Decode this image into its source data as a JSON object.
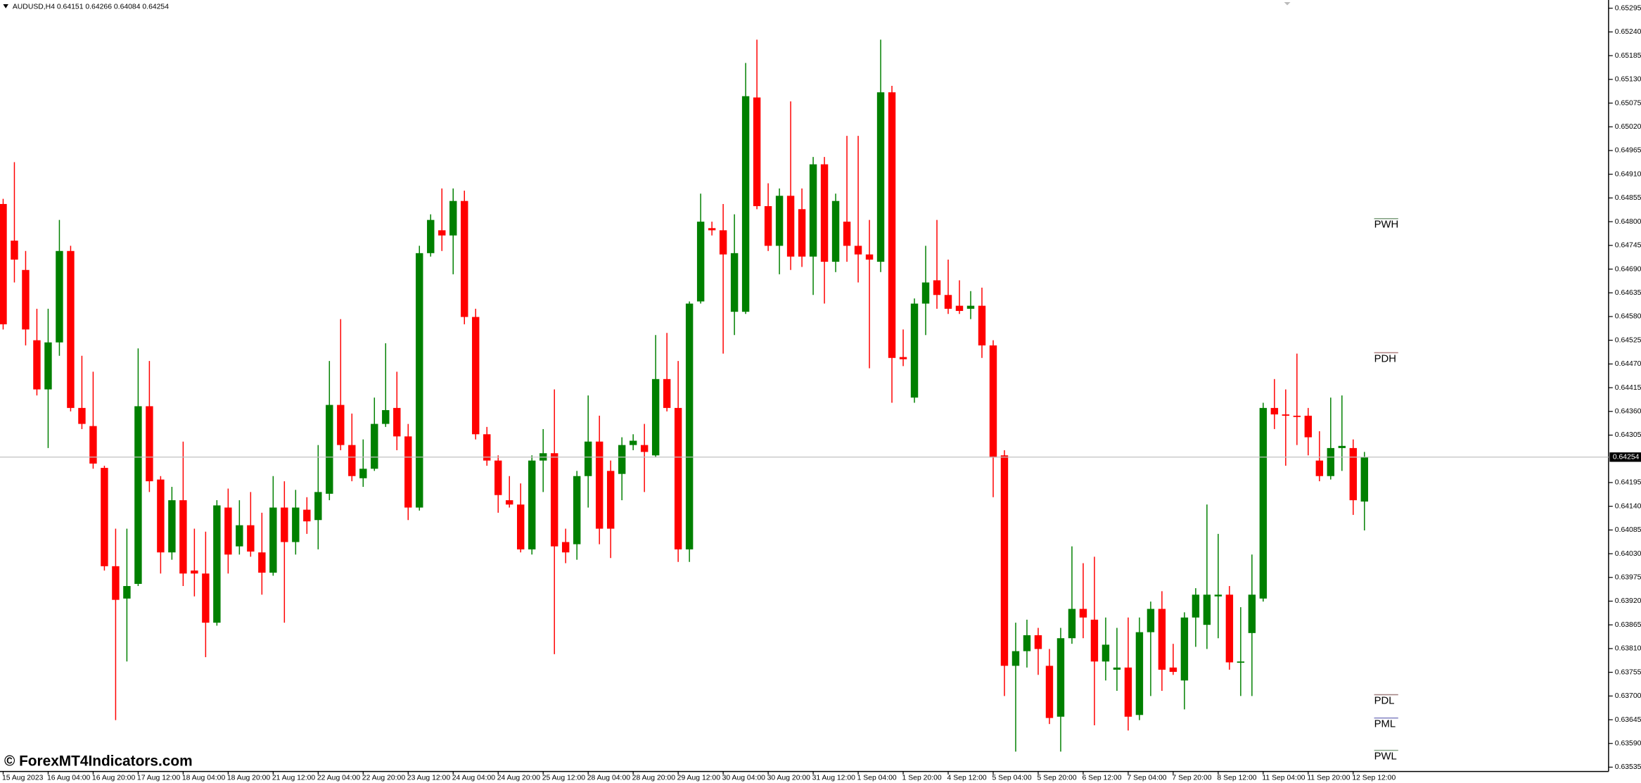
{
  "chart_data": {
    "type": "candlestick",
    "title": "AUDUSD,H4  0.64151 0.64266 0.64084 0.64254",
    "watermark": "© ForexMT4Indicators.com",
    "up_color": "#008000",
    "down_color": "#ff0000",
    "grid": false,
    "ylim": [
      0.63525,
      0.65314
    ],
    "yticks": [
      0.65295,
      {
        "value": 0.6524,
        "label": "0.65240"
      },
      0.65185,
      {
        "value": 0.6513,
        "label": "0.65130"
      },
      0.65075,
      {
        "value": 0.6502,
        "label": "0.65020"
      },
      0.64965,
      {
        "value": 0.6491,
        "label": "0.64910"
      },
      0.64855,
      {
        "value": 0.648,
        "label": "0.64800"
      },
      0.64745,
      {
        "value": 0.6469,
        "label": "0.64690"
      },
      0.64635,
      {
        "value": 0.6458,
        "label": "0.64580"
      },
      0.64525,
      {
        "value": 0.6447,
        "label": "0.64470"
      },
      0.64415,
      {
        "value": 0.6436,
        "label": "0.64360"
      },
      0.64305,
      0.64195,
      {
        "value": 0.6414,
        "label": "0.64140"
      },
      0.64085,
      {
        "value": 0.6403,
        "label": "0.64030"
      },
      0.63975,
      {
        "value": 0.6392,
        "label": "0.63920"
      },
      0.63865,
      {
        "value": 0.6381,
        "label": "0.63810"
      },
      0.63755,
      {
        "value": 0.637,
        "label": "0.63700"
      },
      0.63645,
      {
        "value": 0.6359,
        "label": "0.63590"
      },
      0.63535
    ],
    "last_price": 0.64254,
    "levels": [
      {
        "label": "PWH",
        "value": 0.64807,
        "color": "#7f9f7f"
      },
      {
        "label": "PDH",
        "value": 0.64496,
        "color": "#b08080"
      },
      {
        "label": "PDL",
        "value": 0.63703,
        "color": "#a08080"
      },
      {
        "label": "PML",
        "value": 0.63649,
        "color": "#8080c0"
      },
      {
        "label": "PWL",
        "value": 0.63574,
        "color": "#7f9f7f"
      }
    ],
    "categories": [
      "15 Aug 2023",
      null,
      null,
      null,
      "16 Aug 04:00",
      null,
      null,
      null,
      "16 Aug 20:00",
      null,
      null,
      null,
      "17 Aug 12:00",
      null,
      null,
      null,
      "18 Aug 04:00",
      null,
      null,
      null,
      "18 Aug 20:00",
      null,
      null,
      null,
      "21 Aug 12:00",
      null,
      null,
      null,
      "22 Aug 04:00",
      null,
      null,
      null,
      "22 Aug 20:00",
      null,
      null,
      null,
      "23 Aug 12:00",
      null,
      null,
      null,
      "24 Aug 04:00",
      null,
      null,
      null,
      "24 Aug 20:00",
      null,
      null,
      null,
      "25 Aug 12:00",
      null,
      null,
      null,
      "28 Aug 04:00",
      null,
      null,
      null,
      "28 Aug 20:00",
      null,
      null,
      null,
      "29 Aug 12:00",
      null,
      null,
      null,
      "30 Aug 04:00",
      null,
      null,
      null,
      "30 Aug 20:00",
      null,
      null,
      null,
      "31 Aug 12:00",
      null,
      null,
      null,
      "1 Sep 04:00",
      null,
      null,
      null,
      "1 Sep 20:00",
      null,
      null,
      null,
      "4 Sep 12:00",
      null,
      null,
      null,
      "5 Sep 04:00",
      null,
      null,
      null,
      "5 Sep 20:00",
      null,
      null,
      null,
      "6 Sep 12:00",
      null,
      null,
      null,
      "7 Sep 04:00",
      null,
      null,
      null,
      "7 Sep 20:00",
      null,
      null,
      null,
      "8 Sep 12:00",
      null,
      null,
      null,
      "11 Sep 04:00",
      null,
      null,
      null,
      "11 Sep 20:00",
      null,
      null,
      null,
      "12 Sep 12:00",
      null
    ],
    "open": [
      0.64841,
      0.64756,
      0.64688,
      0.64525,
      0.64411,
      0.6452,
      0.64732,
      0.64368,
      0.64326,
      0.64229,
      0.64001,
      0.63926,
      0.6396,
      0.64372,
      0.64202,
      0.64033,
      0.64154,
      0.63991,
      0.63984,
      0.6387,
      0.64137,
      0.64047,
      0.64096,
      0.64033,
      0.63986,
      0.64137,
      0.64057,
      0.64132,
      0.64108,
      0.64169,
      0.64375,
      0.64282,
      0.64205,
      0.64227,
      0.64331,
      0.64368,
      0.64302,
      0.64137,
      0.64727,
      0.6478,
      0.64768,
      0.64848,
      0.64579,
      0.64307,
      0.64246,
      0.64154,
      0.64144,
      0.6404,
      0.64246,
      0.64263,
      0.64057,
      0.64052,
      0.6421,
      0.6429,
      0.64222,
      0.64215,
      0.64282,
      0.64282,
      0.64258,
      0.64435,
      0.64368,
      0.6404,
      0.64615,
      0.64785,
      0.6478,
      0.64591,
      0.64591,
      0.65088,
      0.64836,
      0.64744,
      0.6486,
      0.64829,
      0.64719,
      0.64933,
      0.64707,
      0.648,
      0.64744,
      0.64724,
      0.64707,
      0.651,
      0.64486,
      0.64392,
      0.6461,
      0.64664,
      0.6463,
      0.64605,
      0.64598,
      0.64605,
      0.64513,
      0.64258,
      0.6377,
      0.63804,
      0.63841,
      0.6377,
      0.63652,
      0.63834,
      0.63902,
      0.63877,
      0.6378,
      0.63761,
      0.63766,
      0.63656,
      0.63848,
      0.63902,
      0.63766,
      0.63736,
      0.63882,
      0.63865,
      0.63931,
      0.63935,
      0.63778,
      0.63846,
      0.63926,
      0.64368,
      0.64353,
      0.6435,
      0.6435,
      0.64246,
      0.6421,
      0.64275,
      0.64275,
      0.64151
    ],
    "high": [
      0.64853,
      0.64938,
      0.64732,
      0.64598,
      0.64598,
      0.64804,
      0.64744,
      0.64489,
      0.64452,
      0.64234,
      0.64088,
      0.64088,
      0.64506,
      0.64477,
      0.6421,
      0.64185,
      0.6429,
      0.64088,
      0.64081,
      0.64154,
      0.64181,
      0.64154,
      0.64173,
      0.64125,
      0.6421,
      0.64198,
      0.64178,
      0.64161,
      0.64282,
      0.64477,
      0.64574,
      0.64355,
      0.64295,
      0.64392,
      0.64518,
      0.64452,
      0.64331,
      0.64744,
      0.64817,
      0.64877,
      0.64877,
      0.64872,
      0.64598,
      0.64324,
      0.64258,
      0.6421,
      0.64193,
      0.64258,
      0.64319,
      0.64411,
      0.64088,
      0.64222,
      0.64397,
      0.6435,
      0.64246,
      0.643,
      0.64307,
      0.64331,
      0.64537,
      0.64542,
      0.64477,
      0.64615,
      0.64865,
      0.648,
      0.64841,
      0.64817,
      0.65168,
      0.65222,
      0.64889,
      0.64877,
      0.65079,
      0.64877,
      0.6495,
      0.6495,
      0.64865,
      0.64999,
      0.64999,
      0.64804,
      0.65222,
      0.65115,
      0.6455,
      0.64622,
      0.64744,
      0.64804,
      0.64712,
      0.64664,
      0.64639,
      0.64647,
      0.64525,
      0.6427,
      0.6387,
      0.63877,
      0.63858,
      0.63809,
      0.63858,
      0.64047,
      0.64008,
      0.64023,
      0.63882,
      0.63858,
      0.63882,
      0.63882,
      0.63919,
      0.63943,
      0.63821,
      0.63894,
      0.6395,
      0.64144,
      0.64076,
      0.63955,
      0.63906,
      0.64028,
      0.6438,
      0.64435,
      0.64411,
      0.64494,
      0.64368,
      0.64314,
      0.64392,
      0.64397,
      0.64295,
      0.64266
    ],
    "low": [
      0.6455,
      0.64659,
      0.64513,
      0.64397,
      0.64275,
      0.64489,
      0.6436,
      0.64319,
      0.64227,
      0.63991,
      0.63644,
      0.6378,
      0.63955,
      0.64173,
      0.63984,
      0.64016,
      0.63955,
      0.63931,
      0.6379,
      0.63863,
      0.63984,
      0.64028,
      0.64023,
      0.63935,
      0.63979,
      0.6387,
      0.64028,
      0.64076,
      0.6404,
      0.64154,
      0.6427,
      0.64198,
      0.64185,
      0.64222,
      0.64324,
      0.6427,
      0.64108,
      0.6413,
      0.64719,
      0.64732,
      0.64678,
      0.64562,
      0.64295,
      0.64234,
      0.64125,
      0.64137,
      0.64033,
      0.64028,
      0.64173,
      0.63797,
      0.64008,
      0.64016,
      0.64137,
      0.64052,
      0.6402,
      0.64154,
      0.6427,
      0.64173,
      0.64253,
      0.6436,
      0.64011,
      0.64011,
      0.6461,
      0.64768,
      0.64494,
      0.64537,
      0.64586,
      0.64829,
      0.64732,
      0.64678,
      0.64688,
      0.64695,
      0.6463,
      0.6461,
      0.64683,
      0.64707,
      0.64659,
      0.6446,
      0.64683,
      0.6438,
      0.64465,
      0.6438,
      0.64537,
      0.64598,
      0.64586,
      0.64586,
      0.64574,
      0.64484,
      0.64161,
      0.637,
      0.63571,
      0.63766,
      0.63749,
      0.63635,
      0.63571,
      0.63821,
      0.63834,
      0.63632,
      0.63736,
      0.63712,
      0.6362,
      0.63644,
      0.637,
      0.63712,
      0.63749,
      0.63669,
      0.63814,
      0.63809,
      0.63834,
      0.63761,
      0.637,
      0.637,
      0.63919,
      0.64319,
      0.64234,
      0.64282,
      0.64258,
      0.64198,
      0.64202,
      0.64222,
      0.6412,
      0.64084
    ],
    "close": [
      0.64562,
      0.64712,
      0.6455,
      0.64411,
      0.6452,
      0.64732,
      0.64368,
      0.64331,
      0.64239,
      0.64001,
      0.63923,
      0.63955,
      0.64372,
      0.64198,
      0.64033,
      0.64154,
      0.63984,
      0.63984,
      0.6387,
      0.64142,
      0.64028,
      0.64096,
      0.64035,
      0.63986,
      0.64137,
      0.64057,
      0.64137,
      0.64105,
      0.64173,
      0.64375,
      0.64282,
      0.6421,
      0.64227,
      0.64331,
      0.64363,
      0.64302,
      0.64137,
      0.64727,
      0.64804,
      0.64768,
      0.64848,
      0.64579,
      0.64307,
      0.64246,
      0.64166,
      0.64144,
      0.6404,
      0.64246,
      0.64263,
      0.64047,
      0.64033,
      0.6421,
      0.6429,
      0.64088,
      0.64088,
      0.64282,
      0.64292,
      0.64266,
      0.64435,
      0.64368,
      0.6404,
      0.6461,
      0.648,
      0.6478,
      0.64724,
      0.64727,
      0.65091,
      0.64836,
      0.64744,
      0.6486,
      0.64719,
      0.64719,
      0.64933,
      0.64707,
      0.64848,
      0.64744,
      0.64724,
      0.64712,
      0.651,
      0.64484,
      0.64481,
      0.6461,
      0.64659,
      0.6463,
      0.64598,
      0.64593,
      0.64605,
      0.64513,
      0.64253,
      0.6377,
      0.63804,
      0.63841,
      0.63809,
      0.63649,
      0.63834,
      0.63902,
      0.63882,
      0.6378,
      0.63819,
      0.63766,
      0.63652,
      0.63848,
      0.63902,
      0.63761,
      0.63756,
      0.63882,
      0.63935,
      0.63935,
      0.63935,
      0.63778,
      0.6378,
      0.63935,
      0.64368,
      0.64353,
      0.6435,
      0.64348,
      0.643,
      0.6421,
      0.64275,
      0.6428,
      0.64154,
      0.64254
    ]
  }
}
